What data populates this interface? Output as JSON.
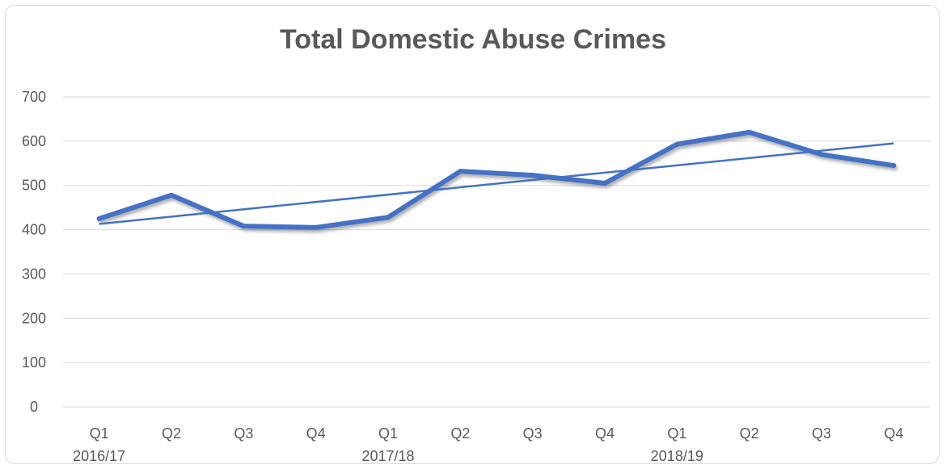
{
  "chart_data": {
    "type": "line",
    "title": "Total Domestic Abuse Crimes",
    "categories": [
      "Q1",
      "Q2",
      "Q3",
      "Q4",
      "Q1",
      "Q2",
      "Q3",
      "Q4",
      "Q1",
      "Q2",
      "Q3",
      "Q4"
    ],
    "year_groups": [
      {
        "label": "2016/17",
        "start": 0,
        "end": 3
      },
      {
        "label": "2017/18",
        "start": 4,
        "end": 7
      },
      {
        "label": "2018/19",
        "start": 8,
        "end": 11
      }
    ],
    "series": [
      {
        "values": [
          425,
          478,
          408,
          405,
          428,
          532,
          523,
          505,
          593,
          620,
          570,
          545
        ]
      }
    ],
    "trendline": {
      "type": "linear",
      "start": 413,
      "end": 595
    },
    "ylim": [
      0,
      700
    ],
    "yticks": [
      0,
      100,
      200,
      300,
      400,
      500,
      600,
      700
    ],
    "grid": true,
    "legend": "none",
    "colors": {
      "series": "#4472c4",
      "grid": "#d9d9d9",
      "text": "#595959"
    }
  }
}
